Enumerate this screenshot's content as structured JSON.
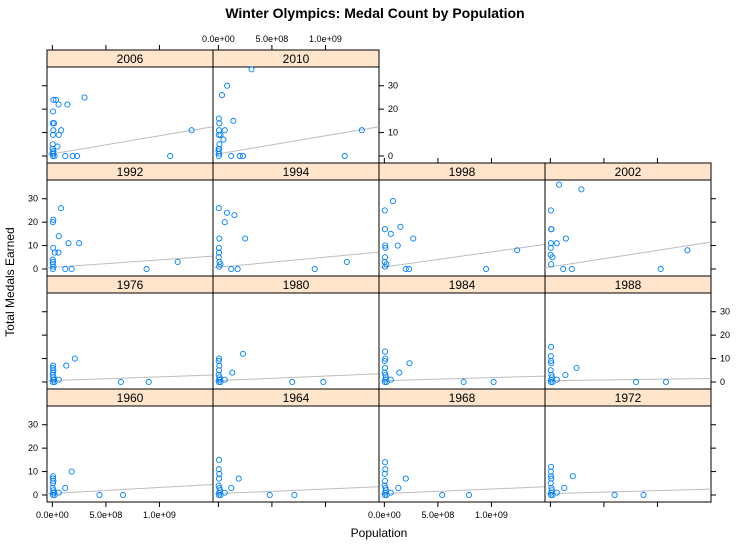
{
  "chart_data": {
    "type": "scatter",
    "title": "Winter Olympics: Medal Count by Population",
    "xlabel": "Population",
    "ylabel": "Total Medals Earned",
    "xlim": [
      -50000000,
      1500000000
    ],
    "ylim": [
      -3,
      38
    ],
    "x_ticks": [
      0,
      500000000,
      1000000000
    ],
    "x_tick_labels": [
      "0.0e+00",
      "5.0e+08",
      "1.0e+09"
    ],
    "y_ticks": [
      0,
      10,
      20,
      30
    ],
    "y_tick_labels": [
      "0",
      "10",
      "20",
      "30"
    ],
    "grid": false,
    "colors": {
      "points": "#0080ff",
      "regression": "#bdbdbd",
      "strip_fill": "#ffe5cc",
      "frame": "#000000"
    },
    "panels": [
      {
        "year": "2006",
        "points": [
          [
            5000000,
            0
          ],
          [
            8000000,
            1
          ],
          [
            10000000,
            2
          ],
          [
            20000000,
            0
          ],
          [
            3000000,
            3
          ],
          [
            4000000,
            5
          ],
          [
            6000000,
            9
          ],
          [
            9000000,
            11
          ],
          [
            15000000,
            14
          ],
          [
            82000000,
            11
          ],
          [
            60000000,
            9
          ],
          [
            6000000,
            19
          ],
          [
            10000000,
            24
          ],
          [
            33000000,
            24
          ],
          [
            300000000,
            25
          ],
          [
            140000000,
            22
          ],
          [
            58000000,
            22
          ],
          [
            4000000,
            14
          ],
          [
            47000000,
            4
          ],
          [
            1300000000,
            11
          ],
          [
            1100000000,
            0
          ],
          [
            120000000,
            0
          ],
          [
            230000000,
            0
          ],
          [
            190000000,
            0
          ],
          [
            2000000,
            1
          ],
          [
            7000000,
            2
          ]
        ],
        "regression": [
          [
            -50000000,
            0.5
          ],
          [
            1500000000,
            12.5
          ]
        ]
      },
      {
        "year": "2010",
        "points": [
          [
            5000000,
            0
          ],
          [
            8000000,
            1
          ],
          [
            3000000,
            3
          ],
          [
            10000000,
            5
          ],
          [
            20000000,
            9
          ],
          [
            34000000,
            26
          ],
          [
            82000000,
            30
          ],
          [
            140000000,
            15
          ],
          [
            310000000,
            37
          ],
          [
            60000000,
            11
          ],
          [
            47000000,
            7
          ],
          [
            5000000,
            16
          ],
          [
            9000000,
            14
          ],
          [
            6000000,
            11
          ],
          [
            4000000,
            9
          ],
          [
            1340000000,
            11
          ],
          [
            1180000000,
            0
          ],
          [
            120000000,
            0
          ],
          [
            200000000,
            0
          ],
          [
            230000000,
            0
          ],
          [
            2000000,
            2
          ],
          [
            7000000,
            3
          ]
        ],
        "regression": [
          [
            -50000000,
            0.5
          ],
          [
            1500000000,
            12.5
          ]
        ]
      },
      {
        "year": "1992",
        "points": [
          [
            5000000,
            0
          ],
          [
            80000000,
            26
          ],
          [
            60000000,
            14
          ],
          [
            8000000,
            9
          ],
          [
            150000000,
            11
          ],
          [
            250000000,
            11
          ],
          [
            9000000,
            21
          ],
          [
            5000000,
            20
          ],
          [
            23000000,
            7
          ],
          [
            57000000,
            7
          ],
          [
            4000000,
            4
          ],
          [
            1170000000,
            3
          ],
          [
            880000000,
            0
          ],
          [
            120000000,
            0
          ],
          [
            180000000,
            0
          ],
          [
            6000000,
            3
          ],
          [
            3000000,
            2
          ],
          [
            10000000,
            1
          ]
        ],
        "regression": [
          [
            -50000000,
            0.5
          ],
          [
            1500000000,
            5.5
          ]
        ]
      },
      {
        "year": "1994",
        "points": [
          [
            4000000,
            26
          ],
          [
            80000000,
            24
          ],
          [
            150000000,
            23
          ],
          [
            60000000,
            20
          ],
          [
            250000000,
            13
          ],
          [
            9000000,
            13
          ],
          [
            5000000,
            9
          ],
          [
            6000000,
            7
          ],
          [
            3000000,
            5
          ],
          [
            1200000000,
            3
          ],
          [
            900000000,
            0
          ],
          [
            120000000,
            0
          ],
          [
            180000000,
            0
          ],
          [
            10000000,
            3
          ],
          [
            7000000,
            1
          ],
          [
            20000000,
            2
          ]
        ],
        "regression": [
          [
            -50000000,
            0.5
          ],
          [
            1500000000,
            7.2
          ]
        ]
      },
      {
        "year": "1998",
        "points": [
          [
            80000000,
            29
          ],
          [
            4000000,
            25
          ],
          [
            150000000,
            18
          ],
          [
            60000000,
            15
          ],
          [
            270000000,
            13
          ],
          [
            125000000,
            10
          ],
          [
            10000000,
            9
          ],
          [
            5000000,
            17
          ],
          [
            8000000,
            10
          ],
          [
            6000000,
            5
          ],
          [
            3000000,
            3
          ],
          [
            1240000000,
            8
          ],
          [
            950000000,
            0
          ],
          [
            200000000,
            0
          ],
          [
            230000000,
            0
          ],
          [
            7000000,
            1
          ],
          [
            20000000,
            2
          ]
        ],
        "regression": [
          [
            -50000000,
            0.5
          ],
          [
            1500000000,
            10.5
          ]
        ]
      },
      {
        "year": "2002",
        "points": [
          [
            82000000,
            36
          ],
          [
            290000000,
            34
          ],
          [
            5000000,
            25
          ],
          [
            8000000,
            17
          ],
          [
            145000000,
            13
          ],
          [
            60000000,
            11
          ],
          [
            10000000,
            17
          ],
          [
            6000000,
            11
          ],
          [
            4000000,
            9
          ],
          [
            3000000,
            6
          ],
          [
            20000000,
            5
          ],
          [
            1280000000,
            8
          ],
          [
            1030000000,
            0
          ],
          [
            120000000,
            0
          ],
          [
            200000000,
            0
          ],
          [
            7000000,
            2
          ]
        ],
        "regression": [
          [
            -50000000,
            0.5
          ],
          [
            1500000000,
            11.5
          ]
        ]
      },
      {
        "year": "1976",
        "points": [
          [
            5000000,
            0
          ],
          [
            8000000,
            1
          ],
          [
            10000000,
            2
          ],
          [
            3000000,
            3
          ],
          [
            6000000,
            4
          ],
          [
            4000000,
            6
          ],
          [
            7000000,
            7
          ],
          [
            9000000,
            5
          ],
          [
            210000000,
            10
          ],
          [
            130000000,
            7
          ],
          [
            60000000,
            1
          ],
          [
            900000000,
            0
          ],
          [
            640000000,
            0
          ],
          [
            20000000,
            0
          ],
          [
            15000000,
            1
          ]
        ],
        "regression": [
          [
            -50000000,
            0.5
          ],
          [
            1500000000,
            3.0
          ]
        ]
      },
      {
        "year": "1980",
        "points": [
          [
            5000000,
            0
          ],
          [
            8000000,
            1
          ],
          [
            10000000,
            2
          ],
          [
            3000000,
            3
          ],
          [
            6000000,
            5
          ],
          [
            4000000,
            9
          ],
          [
            7000000,
            10
          ],
          [
            9000000,
            7
          ],
          [
            230000000,
            12
          ],
          [
            130000000,
            4
          ],
          [
            60000000,
            1
          ],
          [
            980000000,
            0
          ],
          [
            690000000,
            0
          ],
          [
            20000000,
            0
          ],
          [
            15000000,
            1
          ]
        ],
        "regression": [
          [
            -50000000,
            0.5
          ],
          [
            1500000000,
            3.5
          ]
        ]
      },
      {
        "year": "1984",
        "points": [
          [
            5000000,
            0
          ],
          [
            8000000,
            1
          ],
          [
            10000000,
            3
          ],
          [
            3000000,
            4
          ],
          [
            6000000,
            6
          ],
          [
            4000000,
            9
          ],
          [
            7000000,
            13
          ],
          [
            9000000,
            10
          ],
          [
            235000000,
            8
          ],
          [
            140000000,
            4
          ],
          [
            60000000,
            1
          ],
          [
            1020000000,
            0
          ],
          [
            740000000,
            0
          ],
          [
            20000000,
            0
          ],
          [
            15000000,
            2
          ]
        ],
        "regression": [
          [
            -50000000,
            0.5
          ],
          [
            1500000000,
            2.5
          ]
        ]
      },
      {
        "year": "1988",
        "points": [
          [
            5000000,
            0
          ],
          [
            8000000,
            1
          ],
          [
            10000000,
            3
          ],
          [
            3000000,
            5
          ],
          [
            6000000,
            9
          ],
          [
            4000000,
            11
          ],
          [
            7000000,
            15
          ],
          [
            9000000,
            8
          ],
          [
            245000000,
            6
          ],
          [
            140000000,
            3
          ],
          [
            60000000,
            1
          ],
          [
            1080000000,
            0
          ],
          [
            800000000,
            0
          ],
          [
            20000000,
            0
          ],
          [
            15000000,
            2
          ]
        ],
        "regression": [
          [
            -50000000,
            0.5
          ],
          [
            1500000000,
            1.5
          ]
        ]
      },
      {
        "year": "1960",
        "points": [
          [
            5000000,
            0
          ],
          [
            8000000,
            1
          ],
          [
            10000000,
            2
          ],
          [
            3000000,
            3
          ],
          [
            6000000,
            5
          ],
          [
            4000000,
            7
          ],
          [
            7000000,
            8
          ],
          [
            9000000,
            6
          ],
          [
            180000000,
            10
          ],
          [
            120000000,
            3
          ],
          [
            60000000,
            1
          ],
          [
            660000000,
            0
          ],
          [
            440000000,
            0
          ],
          [
            20000000,
            0
          ],
          [
            15000000,
            1
          ]
        ],
        "regression": [
          [
            -50000000,
            0.5
          ],
          [
            1500000000,
            4.5
          ]
        ]
      },
      {
        "year": "1964",
        "points": [
          [
            5000000,
            0
          ],
          [
            8000000,
            1
          ],
          [
            10000000,
            3
          ],
          [
            3000000,
            4
          ],
          [
            6000000,
            7
          ],
          [
            4000000,
            11
          ],
          [
            7000000,
            15
          ],
          [
            9000000,
            9
          ],
          [
            190000000,
            7
          ],
          [
            120000000,
            3
          ],
          [
            60000000,
            1
          ],
          [
            710000000,
            0
          ],
          [
            480000000,
            0
          ],
          [
            20000000,
            0
          ],
          [
            15000000,
            2
          ]
        ],
        "regression": [
          [
            -50000000,
            0.5
          ],
          [
            1500000000,
            3.5
          ]
        ]
      },
      {
        "year": "1968",
        "points": [
          [
            5000000,
            0
          ],
          [
            8000000,
            1
          ],
          [
            10000000,
            3
          ],
          [
            3000000,
            4
          ],
          [
            6000000,
            6
          ],
          [
            4000000,
            9
          ],
          [
            7000000,
            14
          ],
          [
            9000000,
            11
          ],
          [
            200000000,
            7
          ],
          [
            130000000,
            3
          ],
          [
            60000000,
            1
          ],
          [
            790000000,
            0
          ],
          [
            540000000,
            0
          ],
          [
            20000000,
            0
          ],
          [
            15000000,
            2
          ]
        ],
        "regression": [
          [
            -50000000,
            0.5
          ],
          [
            1500000000,
            3.5
          ]
        ]
      },
      {
        "year": "1972",
        "points": [
          [
            5000000,
            0
          ],
          [
            8000000,
            1
          ],
          [
            10000000,
            3
          ],
          [
            3000000,
            5
          ],
          [
            6000000,
            8
          ],
          [
            4000000,
            10
          ],
          [
            7000000,
            12
          ],
          [
            9000000,
            7
          ],
          [
            210000000,
            8
          ],
          [
            130000000,
            3
          ],
          [
            60000000,
            1
          ],
          [
            870000000,
            0
          ],
          [
            600000000,
            0
          ],
          [
            20000000,
            0
          ],
          [
            15000000,
            2
          ]
        ],
        "regression": [
          [
            -50000000,
            0.5
          ],
          [
            1500000000,
            2.5
          ]
        ]
      }
    ]
  }
}
